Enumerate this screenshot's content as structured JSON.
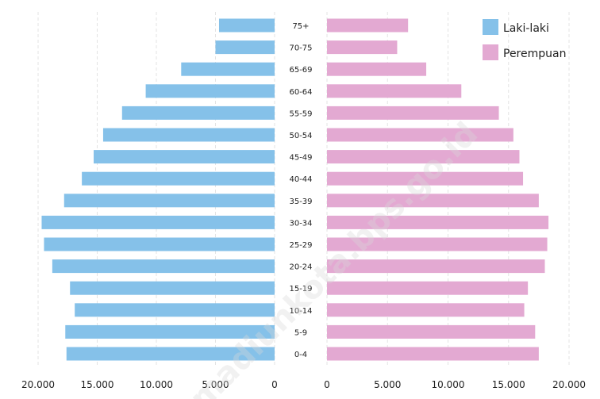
{
  "chart_data": {
    "type": "bar",
    "orientation": "population-pyramid",
    "categories": [
      "0-4",
      "5-9",
      "10-14",
      "15-19",
      "20-24",
      "25-29",
      "30-34",
      "35-39",
      "40-44",
      "45-49",
      "50-54",
      "55-59",
      "60-64",
      "65-69",
      "70-75",
      "75+"
    ],
    "series": [
      {
        "name": "Laki-laki",
        "color": "#85c1e9",
        "values": [
          17600,
          17700,
          16900,
          17300,
          18800,
          19500,
          19700,
          17800,
          16300,
          15300,
          14500,
          12900,
          10900,
          7900,
          5000,
          4700
        ]
      },
      {
        "name": "Perempuan",
        "color": "#e3a9d2",
        "values": [
          17500,
          17200,
          16300,
          16600,
          18000,
          18200,
          18300,
          17500,
          16200,
          15900,
          15400,
          14200,
          11100,
          8200,
          5800,
          6700
        ]
      }
    ],
    "xaxis_left_ticks": [
      "20.000",
      "15.000",
      "10.000",
      "5.000",
      "0"
    ],
    "xaxis_right_ticks": [
      "0",
      "5.000",
      "10.000",
      "15.000",
      "20.000"
    ],
    "xlim": [
      0,
      20000
    ],
    "legend_position": "top-right",
    "grid": "vertical-dashed",
    "watermark": "madiunkota.bps.go.id"
  }
}
